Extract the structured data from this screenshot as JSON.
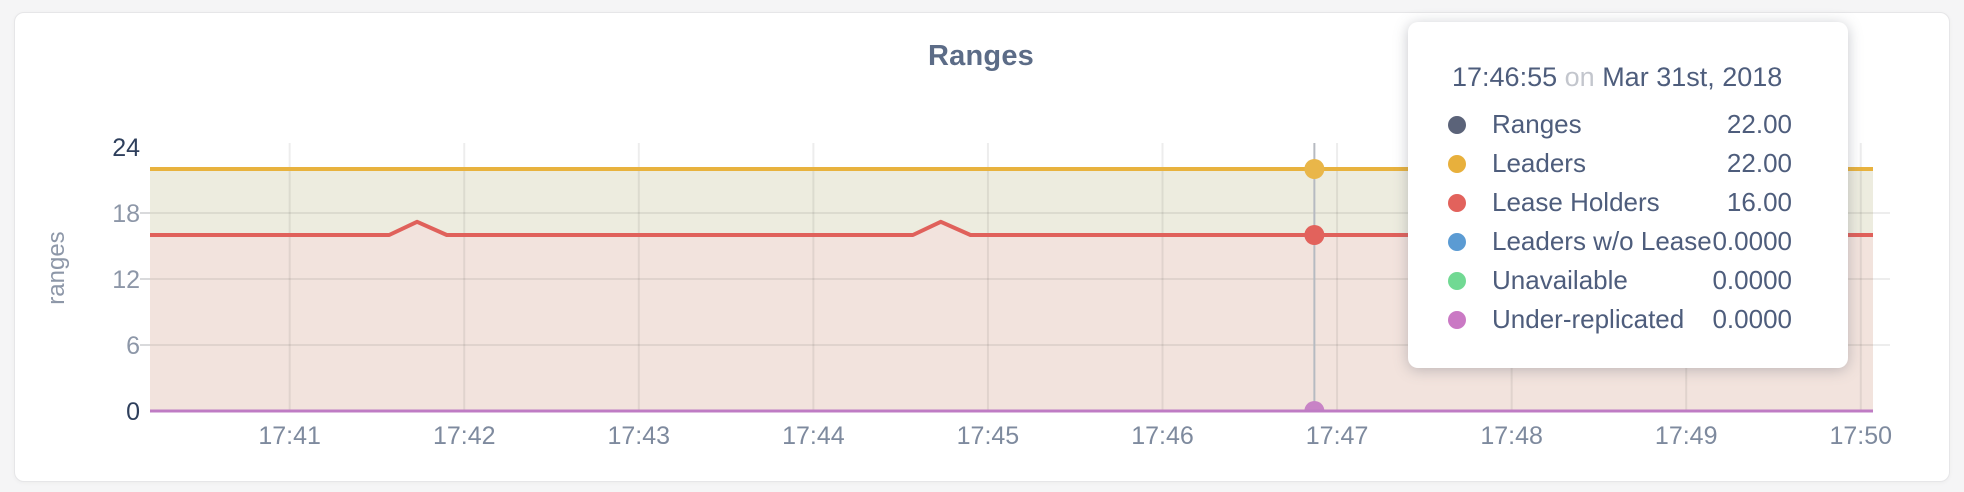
{
  "chart": {
    "title": "Ranges",
    "ylabel": "ranges"
  },
  "tooltip": {
    "time": "17:46:55",
    "on_word": "on",
    "date": "Mar 31st, 2018",
    "rows": [
      {
        "label": "Ranges",
        "value": "22.00",
        "color": "#5b6379"
      },
      {
        "label": "Leaders",
        "value": "22.00",
        "color": "#e8b03c"
      },
      {
        "label": "Lease Holders",
        "value": "16.00",
        "color": "#e2625c"
      },
      {
        "label": "Leaders w/o Lease",
        "value": "0.0000",
        "color": "#5b9bd3"
      },
      {
        "label": "Unavailable",
        "value": "0.0000",
        "color": "#71d993"
      },
      {
        "label": "Under-replicated",
        "value": "0.0000",
        "color": "#ca79c4"
      }
    ]
  },
  "chart_data": {
    "type": "area",
    "title": "Ranges",
    "xlabel": "",
    "ylabel": "ranges",
    "grid": true,
    "legend_position": "hover-tooltip",
    "x_unit": "time (minutes after 17:00, Mar 31st 2018)",
    "xlim": [
      40.2,
      50.07
    ],
    "ylim": [
      0,
      24
    ],
    "x_ticks": [
      {
        "x": 41,
        "label": "17:41"
      },
      {
        "x": 42,
        "label": "17:42"
      },
      {
        "x": 43,
        "label": "17:43"
      },
      {
        "x": 44,
        "label": "17:44"
      },
      {
        "x": 45,
        "label": "17:45"
      },
      {
        "x": 46,
        "label": "17:46"
      },
      {
        "x": 47,
        "label": "17:47"
      },
      {
        "x": 48,
        "label": "17:48"
      },
      {
        "x": 49,
        "label": "17:49"
      },
      {
        "x": 50,
        "label": "17:50"
      }
    ],
    "y_ticks": [
      {
        "v": 0,
        "label": "0",
        "strong": true
      },
      {
        "v": 6,
        "label": "6"
      },
      {
        "v": 12,
        "label": "12"
      },
      {
        "v": 18,
        "label": "18"
      },
      {
        "v": 24,
        "label": "24",
        "strong": true
      }
    ],
    "grid_y": [
      6,
      12,
      18
    ],
    "series": [
      {
        "name": "Leaders",
        "color": "#e8b23e",
        "fill": "#edecdf",
        "line_width": 4,
        "points": [
          [
            40.2,
            22
          ],
          [
            50.07,
            22
          ]
        ]
      },
      {
        "name": "Lease Holders",
        "color": "#e0615b",
        "fill": "#f2e3dd",
        "line_width": 4,
        "points": [
          [
            40.2,
            16
          ],
          [
            41.57,
            16
          ],
          [
            41.73,
            17.2
          ],
          [
            41.9,
            16
          ],
          [
            44.57,
            16
          ],
          [
            44.73,
            17.2
          ],
          [
            44.9,
            16
          ],
          [
            50.07,
            16
          ]
        ]
      },
      {
        "name": "Under-replicated",
        "color": "#bf7cc4",
        "fill": "none",
        "line_width": 3,
        "points": [
          [
            40.2,
            0
          ],
          [
            50.07,
            0
          ]
        ]
      }
    ],
    "hover": {
      "x": 46.87,
      "time": "17:46:55",
      "line_color": "#b6bac1",
      "points": [
        {
          "series": "Leaders",
          "v": 22,
          "color": "#e9b649"
        },
        {
          "series": "Lease Holders",
          "v": 16,
          "color": "#e2625c"
        },
        {
          "series": "Under-replicated",
          "v": 0,
          "color": "#c883c6"
        }
      ]
    }
  }
}
